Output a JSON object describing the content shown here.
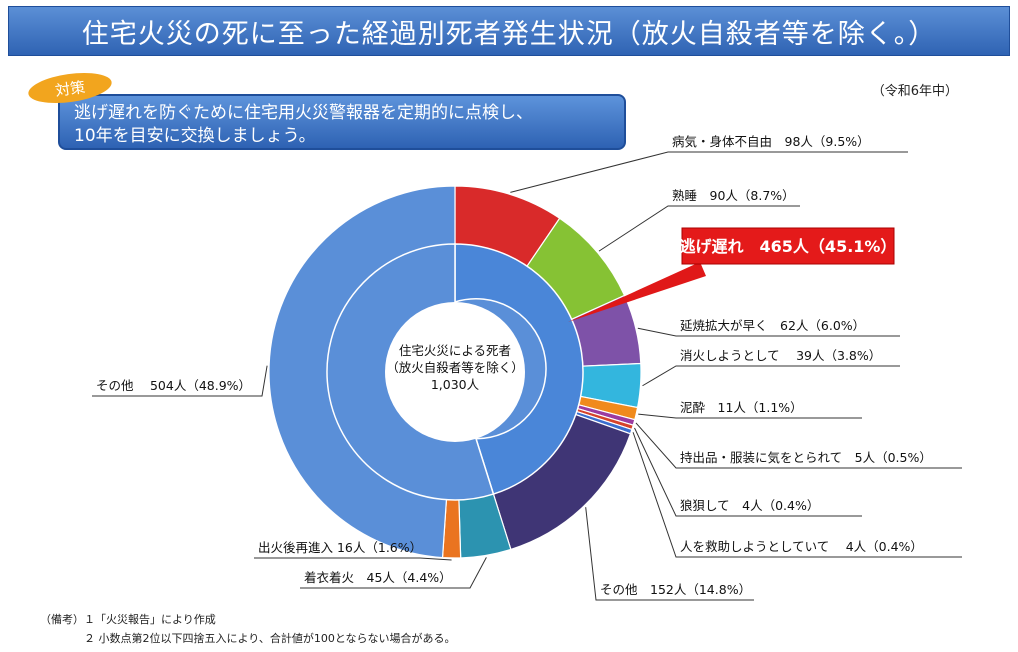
{
  "title": "住宅火災の死に至った経過別死者発生状況（放火自殺者等を除く。）",
  "year_label": "（令和6年中）",
  "measure": {
    "tag": "対策",
    "line1": "逃げ遅れを防ぐために住宅用火災警報器を定期的に点検し、",
    "line2": "10年を目安に交換しましょう。"
  },
  "center": {
    "line1": "住宅火災による死者",
    "line2": "（放火自殺者等を除く）",
    "line3": "1,030人"
  },
  "highlight_label": "逃げ遅れ　465人（45.1%）",
  "chart_data": {
    "type": "pie",
    "total": 1030,
    "inner_ring": [
      {
        "name": "逃げ遅れ",
        "value": 465,
        "percent": 45.1,
        "color": "#4a86d8"
      },
      {
        "name": "その他",
        "value": 565,
        "percent": 54.9,
        "color": "#5a8fd8"
      }
    ],
    "outer_ring": [
      {
        "label": "病気・身体不自由　98人（9.5%）",
        "value": 98,
        "color": "#d92a2a"
      },
      {
        "label": "熟睡　90人（8.7%）",
        "value": 90,
        "color": "#86c234"
      },
      {
        "label": "延焼拡大が早く　62人（6.0%）",
        "value": 62,
        "color": "#7e52a8"
      },
      {
        "label": "消火しようとして　 39人（3.8%）",
        "value": 39,
        "color": "#33b6de"
      },
      {
        "label": "泥酔　11人（1.1%）",
        "value": 11,
        "color": "#f08a1c"
      },
      {
        "label": "持出品・服装に気をとられて　5人（0.5%）",
        "value": 5,
        "color": "#9b3ba0"
      },
      {
        "label": "狼狽して　4人（0.4%）",
        "value": 4,
        "color": "#d6432b"
      },
      {
        "label": "人を救助しようとしていて　 4人（0.4%）",
        "value": 4,
        "color": "#3a6ecf"
      },
      {
        "label": "その他　152人（14.8%）",
        "value": 152,
        "color": "#3f3575"
      },
      {
        "label": "着衣着火　45人（4.4%）",
        "value": 45,
        "color": "#2c93b0"
      },
      {
        "label": "出火後再進入 16人（1.6%）",
        "value": 16,
        "color": "#ea7420"
      },
      {
        "label": "その他　 504人（48.9%）",
        "value": 504,
        "color": "#5a8fd8"
      }
    ]
  },
  "notes": {
    "n1": "（備考）１「火災報告」により作成",
    "n2": "２ 小数点第2位以下四捨五入により、合計値が100とならない場合がある。"
  }
}
